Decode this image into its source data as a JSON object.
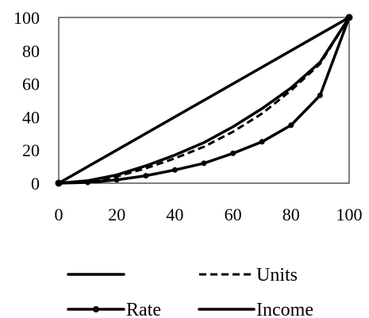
{
  "chart_data": {
    "type": "line",
    "xlim": [
      0,
      100
    ],
    "ylim": [
      0,
      100
    ],
    "x_ticks": [
      0,
      20,
      40,
      60,
      80,
      100
    ],
    "y_ticks": [
      0,
      20,
      40,
      60,
      80,
      100
    ],
    "grid": false,
    "legend_position": "bottom",
    "series": [
      {
        "name": "",
        "style": "solid",
        "color": "#000000",
        "points": [
          [
            0,
            0
          ],
          [
            100,
            100
          ]
        ]
      },
      {
        "name": "Units",
        "style": "dashed",
        "color": "#000000",
        "points": [
          [
            0,
            0
          ],
          [
            10,
            1
          ],
          [
            20,
            4
          ],
          [
            30,
            9
          ],
          [
            40,
            15
          ],
          [
            50,
            22
          ],
          [
            60,
            31
          ],
          [
            70,
            42
          ],
          [
            80,
            56
          ],
          [
            90,
            72
          ],
          [
            100,
            100
          ]
        ]
      },
      {
        "name": "Rate",
        "style": "solid-markers",
        "color": "#000000",
        "points": [
          [
            0,
            0
          ],
          [
            10,
            0.5
          ],
          [
            20,
            2
          ],
          [
            30,
            4.5
          ],
          [
            40,
            8
          ],
          [
            50,
            12
          ],
          [
            60,
            18
          ],
          [
            70,
            25
          ],
          [
            80,
            35
          ],
          [
            90,
            53
          ],
          [
            100,
            100
          ]
        ]
      },
      {
        "name": "Income",
        "style": "solid",
        "color": "#000000",
        "points": [
          [
            0,
            0
          ],
          [
            10,
            1.5
          ],
          [
            20,
            5
          ],
          [
            30,
            10.5
          ],
          [
            40,
            17
          ],
          [
            50,
            24.5
          ],
          [
            60,
            34
          ],
          [
            70,
            45
          ],
          [
            80,
            57.5
          ],
          [
            90,
            73
          ],
          [
            100,
            100
          ]
        ]
      }
    ]
  }
}
